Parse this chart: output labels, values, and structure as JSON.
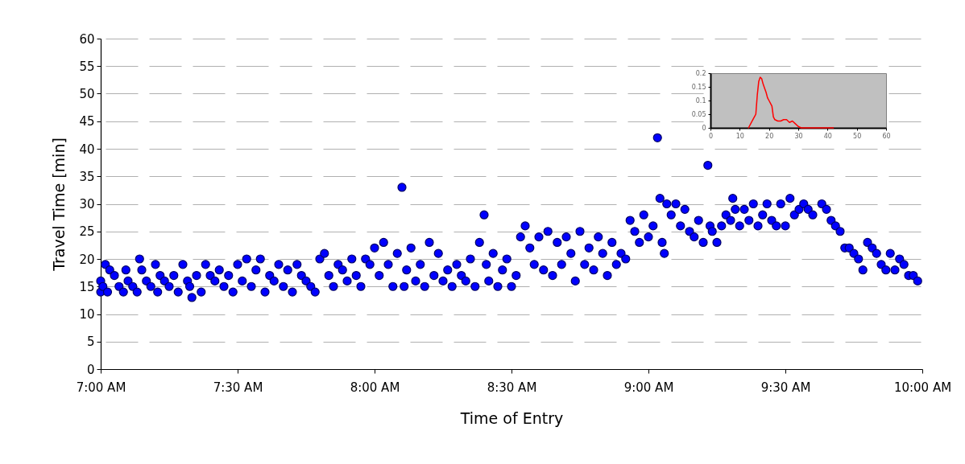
{
  "chart_data": [
    {
      "type": "scatter",
      "xlabel": "Time of Entry",
      "ylabel": "Travel Time [min]",
      "xlim": [
        7,
        10
      ],
      "ylim": [
        0,
        60
      ],
      "xticks": [
        {
          "value": 7,
          "label": "7:00 AM"
        },
        {
          "value": 7.5,
          "label": "7:30 AM"
        },
        {
          "value": 8,
          "label": "8:00 AM"
        },
        {
          "value": 8.5,
          "label": "8:30 AM"
        },
        {
          "value": 9,
          "label": "9:00 AM"
        },
        {
          "value": 9.5,
          "label": "9:30 AM"
        },
        {
          "value": 10,
          "label": "10:00 AM"
        }
      ],
      "yticks": [
        0,
        5,
        10,
        15,
        20,
        25,
        30,
        35,
        40,
        45,
        50,
        55,
        60
      ],
      "grid": "y",
      "marker": "circle",
      "series": [
        {
          "color": "#0000ff",
          "x": [
            7.0,
            7.0,
            7.008,
            7.017,
            7.025,
            7.033,
            7.05,
            7.067,
            7.083,
            7.092,
            7.1,
            7.117,
            7.133,
            7.142,
            7.15,
            7.167,
            7.183,
            7.2,
            7.208,
            7.217,
            7.233,
            7.25,
            7.267,
            7.283,
            7.3,
            7.317,
            7.325,
            7.333,
            7.35,
            7.367,
            7.383,
            7.4,
            7.417,
            7.433,
            7.45,
            7.467,
            7.483,
            7.5,
            7.517,
            7.533,
            7.55,
            7.567,
            7.583,
            7.6,
            7.617,
            7.633,
            7.65,
            7.667,
            7.683,
            7.7,
            7.717,
            7.733,
            7.75,
            7.767,
            7.783,
            7.8,
            7.817,
            7.833,
            7.85,
            7.867,
            7.883,
            7.9,
            7.917,
            7.933,
            7.95,
            7.967,
            7.983,
            8.0,
            8.017,
            8.033,
            8.05,
            8.067,
            8.083,
            8.1,
            8.108,
            8.117,
            8.133,
            8.15,
            8.167,
            8.183,
            8.2,
            8.217,
            8.233,
            8.25,
            8.267,
            8.283,
            8.3,
            8.317,
            8.333,
            8.35,
            8.367,
            8.383,
            8.4,
            8.408,
            8.417,
            8.433,
            8.45,
            8.467,
            8.483,
            8.5,
            8.517,
            8.533,
            8.55,
            8.567,
            8.583,
            8.6,
            8.617,
            8.633,
            8.65,
            8.667,
            8.683,
            8.7,
            8.717,
            8.733,
            8.75,
            8.767,
            8.783,
            8.8,
            8.817,
            8.833,
            8.85,
            8.867,
            8.883,
            8.9,
            8.917,
            8.933,
            8.95,
            8.967,
            8.983,
            9.0,
            9.017,
            9.033,
            9.042,
            9.05,
            9.058,
            9.067,
            9.083,
            9.1,
            9.117,
            9.133,
            9.15,
            9.167,
            9.183,
            9.2,
            9.217,
            9.225,
            9.233,
            9.25,
            9.267,
            9.283,
            9.3,
            9.308,
            9.317,
            9.333,
            9.35,
            9.367,
            9.383,
            9.4,
            9.417,
            9.433,
            9.45,
            9.467,
            9.483,
            9.5,
            9.517,
            9.533,
            9.55,
            9.567,
            9.583,
            9.6,
            9.633,
            9.65,
            9.667,
            9.683,
            9.7,
            9.717,
            9.733,
            9.75,
            9.767,
            9.783,
            9.8,
            9.817,
            9.833,
            9.85,
            9.867,
            9.883,
            9.9,
            9.917,
            9.933,
            9.95,
            9.967,
            9.983
          ],
          "values": [
            16,
            14,
            15,
            19,
            14,
            18,
            17,
            15,
            14,
            18,
            16,
            15,
            14,
            20,
            18,
            16,
            15,
            19,
            14,
            17,
            16,
            15,
            17,
            14,
            19,
            16,
            15,
            13,
            17,
            14,
            19,
            17,
            16,
            18,
            15,
            17,
            14,
            19,
            16,
            20,
            15,
            18,
            20,
            14,
            17,
            16,
            19,
            15,
            18,
            14,
            19,
            17,
            16,
            15,
            14,
            20,
            21,
            17,
            15,
            19,
            18,
            16,
            20,
            17,
            15,
            20,
            19,
            22,
            17,
            23,
            19,
            15,
            21,
            33,
            15,
            18,
            22,
            16,
            19,
            15,
            23,
            17,
            21,
            16,
            18,
            15,
            19,
            17,
            16,
            20,
            15,
            23,
            28,
            19,
            16,
            21,
            15,
            18,
            20,
            15,
            17,
            24,
            26,
            22,
            19,
            24,
            18,
            25,
            17,
            23,
            19,
            24,
            21,
            16,
            25,
            19,
            22,
            18,
            24,
            21,
            17,
            23,
            19,
            21,
            20,
            27,
            25,
            23,
            28,
            24,
            26,
            42,
            31,
            23,
            21,
            30,
            28,
            30,
            26,
            29,
            25,
            24,
            27,
            23,
            37,
            26,
            25,
            23,
            26,
            28,
            27,
            31,
            29,
            26,
            29,
            27,
            30,
            26,
            28,
            30,
            27,
            26,
            30,
            26,
            31,
            28,
            29,
            30,
            29,
            28,
            30,
            29,
            27,
            26,
            25,
            22,
            22,
            21,
            20,
            18,
            23,
            22,
            21,
            19,
            18,
            21,
            18,
            20,
            19,
            17,
            17,
            16
          ]
        }
      ]
    },
    {
      "type": "line",
      "xlim": [
        0,
        60
      ],
      "ylim": [
        0,
        0.2
      ],
      "xticks": [
        0,
        10,
        20,
        30,
        40,
        50,
        60
      ],
      "yticks": [
        0,
        0.05,
        0.1,
        0.15,
        0.2
      ],
      "series": [
        {
          "color": "#ff0000",
          "x": [
            13,
            14,
            15,
            15.5,
            16,
            16.5,
            17,
            17.5,
            18,
            18.5,
            19,
            19.5,
            20,
            21,
            21.5,
            22,
            23,
            24,
            25,
            26,
            27,
            28,
            29,
            30,
            31,
            42
          ],
          "values": [
            0,
            0.02,
            0.04,
            0.05,
            0.12,
            0.17,
            0.185,
            0.18,
            0.16,
            0.145,
            0.13,
            0.11,
            0.1,
            0.08,
            0.04,
            0.03,
            0.025,
            0.025,
            0.03,
            0.03,
            0.02,
            0.025,
            0.015,
            0.005,
            0,
            0
          ]
        }
      ]
    }
  ]
}
